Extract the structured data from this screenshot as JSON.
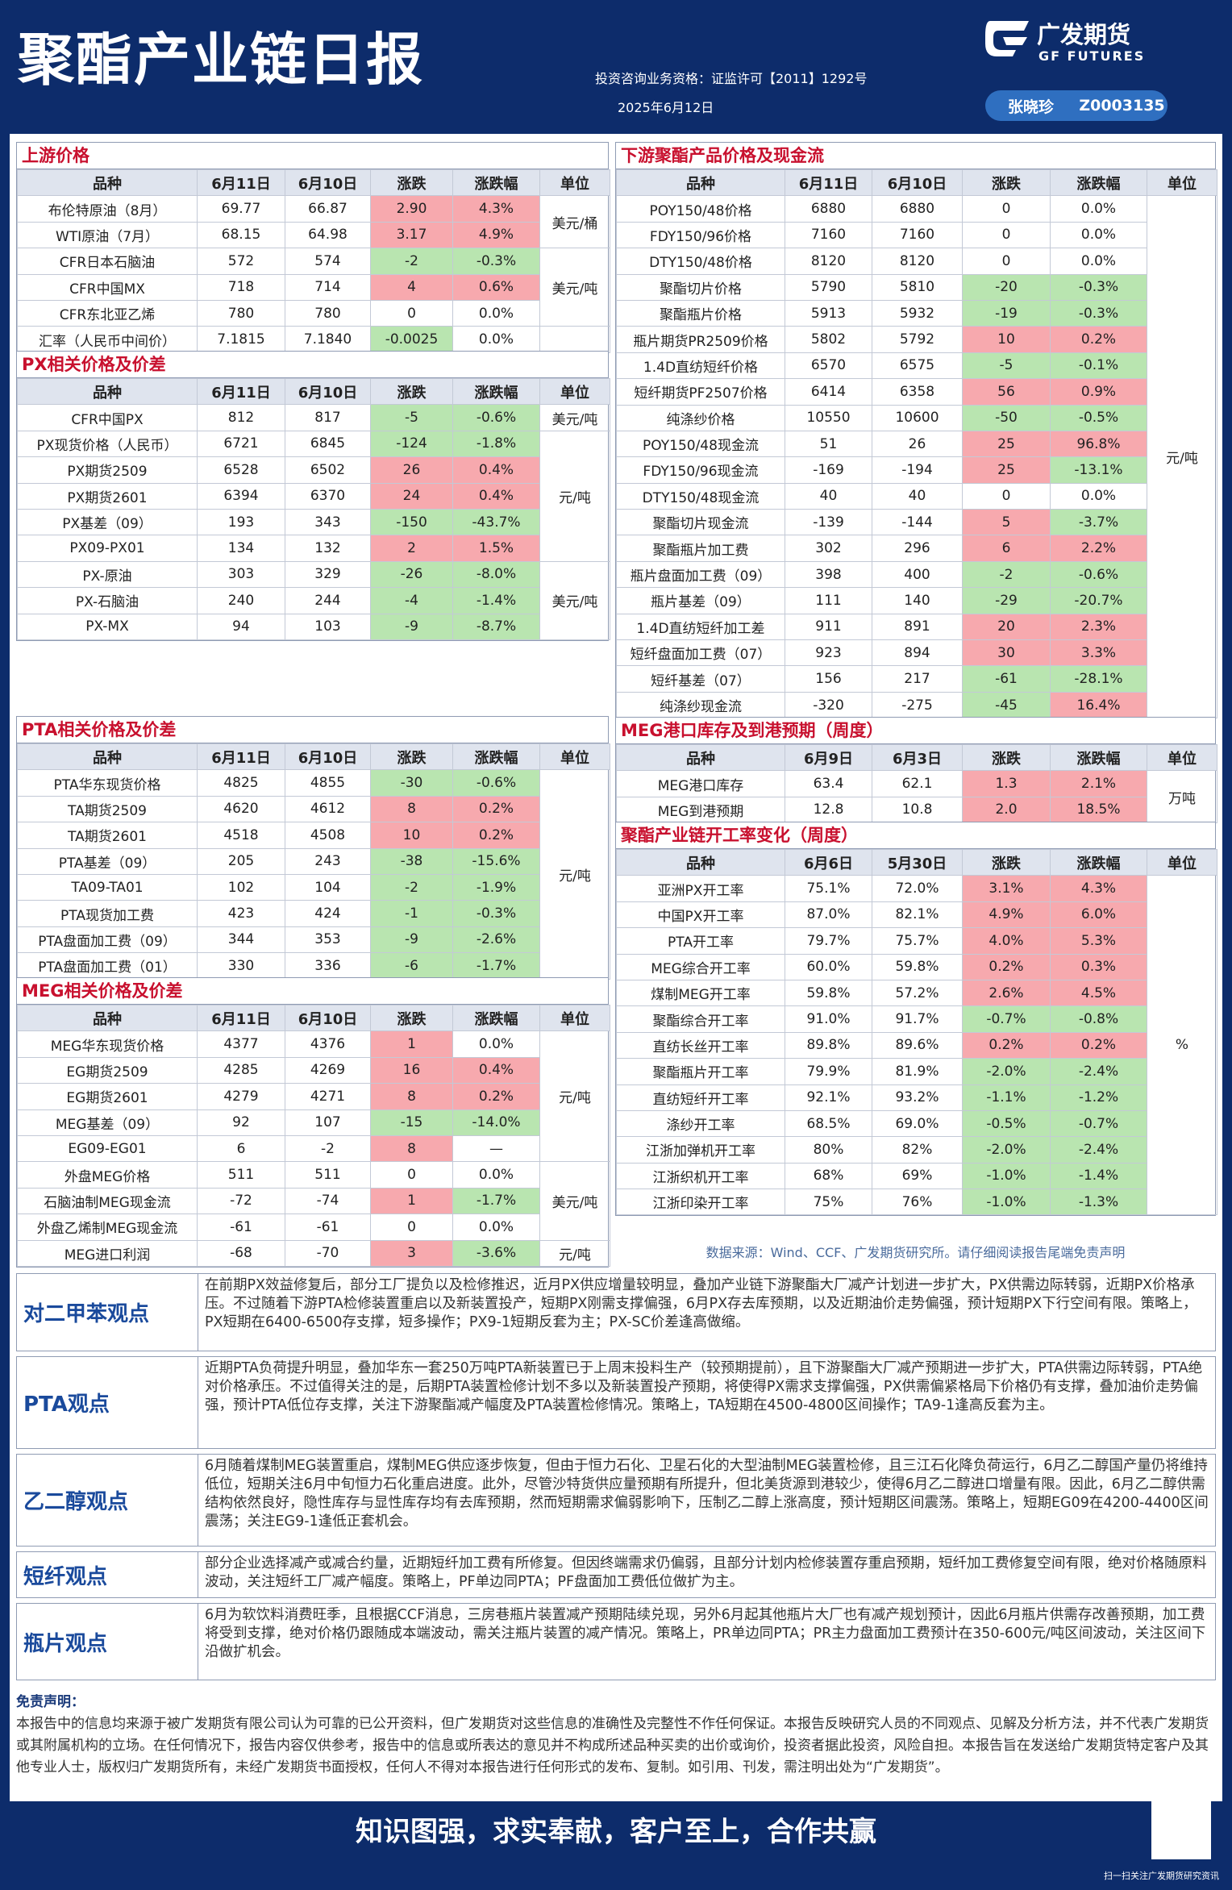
{
  "header": {
    "title": "聚酯产业链日报",
    "logo_cn": "广发期货",
    "logo_en": "GF FUTURES",
    "license": "投资咨询业务资格：证监许可【2011】1292号",
    "date": "2025年6月12日",
    "analyst": "张晓珍",
    "analyst_id": "Z0003135"
  },
  "tables": [
    {
      "title": "上游价格",
      "columns": [
        "品种",
        "6月11日",
        "6月10日",
        "涨跌",
        "涨跌幅",
        "单位"
      ],
      "groups": [
        {
          "unit": "美元/桶",
          "rows": [
            [
              "布伦特原油（8月）",
              "69.77",
              "66.87",
              "2.90",
              "4.3%"
            ],
            [
              "WTI原油（7月）",
              "68.15",
              "64.98",
              "3.17",
              "4.9%"
            ]
          ]
        },
        {
          "unit": "美元/吨",
          "rows": [
            [
              "CFR日本石脑油",
              "572",
              "574",
              "-2",
              "-0.3%"
            ],
            [
              "CFR中国MX",
              "718",
              "714",
              "4",
              "0.6%"
            ],
            [
              "CFR东北亚乙烯",
              "780",
              "780",
              "0",
              "0.0%"
            ]
          ]
        },
        {
          "rows": [
            [
              "汇率（人民币中间价）",
              "7.1815",
              "7.1840",
              "-0.0025",
              "0.0%"
            ]
          ]
        }
      ]
    },
    {
      "title": "PX相关价格及价差",
      "columns": [
        "品种",
        "6月11日",
        "6月10日",
        "涨跌",
        "涨跌幅",
        "单位"
      ],
      "groups": [
        {
          "unit": "美元/吨",
          "rows": [
            [
              "CFR中国PX",
              "812",
              "817",
              "-5",
              "-0.6%"
            ]
          ]
        },
        {
          "unit": "元/吨",
          "rows": [
            [
              "PX现货价格（人民币）",
              "6721",
              "6845",
              "-124",
              "-1.8%"
            ],
            [
              "PX期货2509",
              "6528",
              "6502",
              "26",
              "0.4%"
            ],
            [
              "PX期货2601",
              "6394",
              "6370",
              "24",
              "0.4%"
            ],
            [
              "PX基差（09）",
              "193",
              "343",
              "-150",
              "-43.7%"
            ],
            [
              "PX09-PX01",
              "134",
              "132",
              "2",
              "1.5%"
            ]
          ]
        },
        {
          "unit": "美元/吨",
          "rows": [
            [
              "PX-原油",
              "303",
              "329",
              "-26",
              "-8.0%"
            ],
            [
              "PX-石脑油",
              "240",
              "244",
              "-4",
              "-1.4%"
            ],
            [
              "PX-MX",
              "94",
              "103",
              "-9",
              "-8.7%"
            ]
          ]
        }
      ]
    },
    {
      "title": "PTA相关价格及价差",
      "columns": [
        "品种",
        "6月11日",
        "6月10日",
        "涨跌",
        "涨跌幅",
        "单位"
      ],
      "groups": [
        {
          "unit": "元/吨",
          "rows": [
            [
              "PTA华东现货价格",
              "4825",
              "4855",
              "-30",
              "-0.6%"
            ],
            [
              "TA期货2509",
              "4620",
              "4612",
              "8",
              "0.2%"
            ],
            [
              "TA期货2601",
              "4518",
              "4508",
              "10",
              "0.2%"
            ],
            [
              "PTA基差（09）",
              "205",
              "243",
              "-38",
              "-15.6%"
            ],
            [
              "TA09-TA01",
              "102",
              "104",
              "-2",
              "-1.9%"
            ],
            [
              "PTA现货加工费",
              "423",
              "424",
              "-1",
              "-0.3%"
            ],
            [
              "PTA盘面加工费（09）",
              "344",
              "353",
              "-9",
              "-2.6%"
            ],
            [
              "PTA盘面加工费（01）",
              "330",
              "336",
              "-6",
              "-1.7%"
            ]
          ]
        }
      ]
    },
    {
      "title": "MEG相关价格及价差",
      "columns": [
        "品种",
        "6月11日",
        "6月10日",
        "涨跌",
        "涨跌幅",
        "单位"
      ],
      "groups": [
        {
          "unit": "元/吨",
          "rows": [
            [
              "MEG华东现货价格",
              "4377",
              "4376",
              "1",
              "0.0%"
            ],
            [
              "EG期货2509",
              "4285",
              "4269",
              "16",
              "0.4%"
            ],
            [
              "EG期货2601",
              "4279",
              "4271",
              "8",
              "0.2%"
            ],
            [
              "MEG基差（09）",
              "92",
              "107",
              "-15",
              "-14.0%"
            ],
            [
              "EG09-EG01",
              "6",
              "-2",
              "8",
              "—"
            ]
          ]
        },
        {
          "unit": "美元/吨",
          "rows": [
            [
              "外盘MEG价格",
              "511",
              "511",
              "0",
              "0.0%"
            ],
            [
              "石脑油制MEG现金流",
              "-72",
              "-74",
              "1",
              "-1.7%"
            ],
            [
              "外盘乙烯制MEG现金流",
              "-61",
              "-61",
              "0",
              "0.0%"
            ]
          ]
        },
        {
          "unit": "元/吨",
          "rows": [
            [
              "MEG进口利润",
              "-68",
              "-70",
              "3",
              "-3.6%"
            ]
          ]
        }
      ]
    },
    {
      "title": "下游聚酯产品价格及现金流",
      "columns": [
        "品种",
        "6月11日",
        "6月10日",
        "涨跌",
        "涨跌幅",
        "单位"
      ],
      "groups": [
        {
          "unit": "元/吨",
          "rows": [
            [
              "POY150/48价格",
              "6880",
              "6880",
              "0",
              "0.0%"
            ],
            [
              "FDY150/96价格",
              "7160",
              "7160",
              "0",
              "0.0%"
            ],
            [
              "DTY150/48价格",
              "8120",
              "8120",
              "0",
              "0.0%"
            ],
            [
              "聚酯切片价格",
              "5790",
              "5810",
              "-20",
              "-0.3%"
            ],
            [
              "聚酯瓶片价格",
              "5913",
              "5932",
              "-19",
              "-0.3%"
            ],
            [
              "瓶片期货PR2509价格",
              "5802",
              "5792",
              "10",
              "0.2%"
            ],
            [
              "1.4D直纺短纤价格",
              "6570",
              "6575",
              "-5",
              "-0.1%"
            ],
            [
              "短纤期货PF2507价格",
              "6414",
              "6358",
              "56",
              "0.9%"
            ],
            [
              "纯涤纱价格",
              "10550",
              "10600",
              "-50",
              "-0.5%"
            ],
            [
              "POY150/48现金流",
              "51",
              "26",
              "25",
              "96.8%"
            ],
            [
              "FDY150/96现金流",
              "-169",
              "-194",
              "25",
              "-13.1%"
            ],
            [
              "DTY150/48现金流",
              "40",
              "40",
              "0",
              "0.0%"
            ],
            [
              "聚酯切片现金流",
              "-139",
              "-144",
              "5",
              "-3.7%"
            ],
            [
              "聚酯瓶片加工费",
              "302",
              "296",
              "6",
              "2.2%"
            ],
            [
              "瓶片盘面加工费（09）",
              "398",
              "400",
              "-2",
              "-0.6%"
            ],
            [
              "瓶片基差（09）",
              "111",
              "140",
              "-29",
              "-20.7%"
            ],
            [
              "1.4D直纺短纤加工差",
              "911",
              "891",
              "20",
              "2.3%"
            ],
            [
              "短纤盘面加工费（07）",
              "923",
              "894",
              "30",
              "3.3%"
            ],
            [
              "短纤基差（07）",
              "156",
              "217",
              "-61",
              "-28.1%"
            ],
            [
              "纯涤纱现金流",
              "-320",
              "-275",
              "-45",
              "16.4%"
            ]
          ]
        }
      ]
    },
    {
      "title": "MEG港口库存及到港预期（周度）",
      "columns": [
        "品种",
        "6月9日",
        "6月3日",
        "涨跌",
        "涨跌幅",
        "单位"
      ],
      "groups": [
        {
          "unit": "万吨",
          "rows": [
            [
              "MEG港口库存",
              "63.4",
              "62.1",
              "1.3",
              "2.1%"
            ],
            [
              "MEG到港预期",
              "12.8",
              "10.8",
              "2.0",
              "18.5%"
            ]
          ]
        }
      ]
    },
    {
      "title": "聚酯产业链开工率变化（周度）",
      "columns": [
        "品种",
        "6月6日",
        "5月30日",
        "涨跌",
        "涨跌幅",
        "单位"
      ],
      "groups": [
        {
          "unit": "%",
          "rows": [
            [
              "亚洲PX开工率",
              "75.1%",
              "72.0%",
              "3.1%",
              "4.3%"
            ],
            [
              "中国PX开工率",
              "87.0%",
              "82.1%",
              "4.9%",
              "6.0%"
            ],
            [
              "PTA开工率",
              "79.7%",
              "75.7%",
              "4.0%",
              "5.3%"
            ],
            [
              "MEG综合开工率",
              "60.0%",
              "59.8%",
              "0.2%",
              "0.3%"
            ],
            [
              "煤制MEG开工率",
              "59.8%",
              "57.2%",
              "2.6%",
              "4.5%"
            ],
            [
              "聚酯综合开工率",
              "91.0%",
              "91.7%",
              "-0.7%",
              "-0.8%"
            ],
            [
              "直纺长丝开工率",
              "89.8%",
              "89.6%",
              "0.2%",
              "0.2%"
            ],
            [
              "聚酯瓶片开工率",
              "79.9%",
              "81.9%",
              "-2.0%",
              "-2.4%"
            ],
            [
              "直纺短纤开工率",
              "92.1%",
              "93.2%",
              "-1.1%",
              "-1.2%"
            ],
            [
              "涤纱开工率",
              "68.5%",
              "69.0%",
              "-0.5%",
              "-0.7%"
            ],
            [
              "江浙加弹机开工率",
              "80%",
              "82%",
              "-2.0%",
              "-2.4%"
            ],
            [
              "江浙织机开工率",
              "68%",
              "69%",
              "-1.0%",
              "-1.4%"
            ],
            [
              "江浙印染开工率",
              "75%",
              "76%",
              "-1.0%",
              "-1.3%"
            ]
          ]
        }
      ]
    }
  ],
  "source": "数据来源：Wind、CCF、广发期货研究所。请仔细阅读报告尾端免责声明",
  "views": [
    {
      "label": "对二甲苯观点",
      "text": "在前期PX效益修复后，部分工厂提负以及检修推迟，近月PX供应增量较明显，叠加产业链下游聚酯大厂减产计划进一步扩大，PX供需边际转弱，近期PX价格承压。不过随着下游PTA检修装置重启以及新装置投产，短期PX刚需支撑偏强，6月PX存去库预期，以及近期油价走势偏强，预计短期PX下行空间有限。策略上，PX短期在6400-6500存支撑，短多操作；PX9-1短期反套为主；PX-SC价差逢高做缩。"
    },
    {
      "label": "PTA观点",
      "text": "近期PTA负荷提升明显，叠加华东一套250万吨PTA新装置已于上周末投料生产（较预期提前），且下游聚酯大厂减产预期进一步扩大，PTA供需边际转弱，PTA绝对价格承压。不过值得关注的是，后期PTA装置检修计划不多以及新装置投产预期，将使得PX需求支撑偏强，PX供需偏紧格局下价格仍有支撑，叠加油价走势偏强，预计PTA低位存支撑，关注下游聚酯减产幅度及PTA装置检修情况。策略上，TA短期在4500-4800区间操作；TA9-1逢高反套为主。"
    },
    {
      "label": "乙二醇观点",
      "text": "6月随着煤制MEG装置重启，煤制MEG供应逐步恢复，但由于恒力石化、卫星石化的大型油制MEG装置检修，且三江石化降负荷运行，6月乙二醇国产量仍将维持低位，短期关注6月中旬恒力石化重启进度。此外，尽管沙特货供应量预期有所提升，但北美货源到港较少，使得6月乙二醇进口增量有限。因此，6月乙二醇供需结构依然良好，隐性库存与显性库存均有去库预期，然而短期需求偏弱影响下，压制乙二醇上涨高度，预计短期区间震荡。策略上，短期EG09在4200-4400区间震荡；关注EG9-1逢低正套机会。"
    },
    {
      "label": "短纤观点",
      "text": "部分企业选择减产或减合约量，近期短纤加工费有所修复。但因终端需求仍偏弱，且部分计划内检修装置存重启预期，短纤加工费修复空间有限，绝对价格随原料波动，关注短纤工厂减产幅度。策略上，PF单边同PTA；PF盘面加工费低位做扩为主。"
    },
    {
      "label": "瓶片观点",
      "text": "6月为软饮料消费旺季，且根据CCF消息，三房巷瓶片装置减产预期陆续兑现，另外6月起其他瓶片大厂也有减产规划预计，因此6月瓶片供需存改善预期，加工费将受到支撑，绝对价格仍跟随成本端波动，需关注瓶片装置的减产情况。策略上，PR单边同PTA；PR主力盘面加工费预计在350-600元/吨区间波动，关注区间下沿做扩机会。"
    }
  ],
  "disclaimer": {
    "title": "免责声明：",
    "text": "本报告中的信息均来源于被广发期货有限公司认为可靠的已公开资料，但广发期货对这些信息的准确性及完整性不作任何保证。本报告反映研究人员的不同观点、见解及分析方法，并不代表广发期货或其附属机构的立场。在任何情况下，报告内容仅供参考，报告中的信息或所表达的意见并不构成所述品种买卖的出价或询价，投资者据此投资，风险自担。本报告旨在发送给广发期货特定客户及其他专业人士，版权归广发期货所有，未经广发期货书面授权，任何人不得对本报告进行任何形式的发布、复制。如引用、刊发，需注明出处为“广发期货”。"
  },
  "footer": {
    "slogan": "知识图强，求实奉献，客户至上，合作共赢",
    "qr_caption": "扫一扫关注广发期货研究资讯"
  }
}
